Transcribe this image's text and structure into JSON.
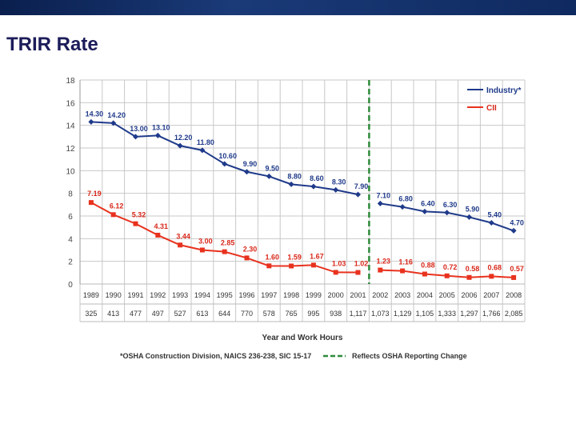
{
  "slide": {
    "title": "TRIR Rate",
    "accent": "#0f2a60"
  },
  "chart_data": {
    "type": "line",
    "xlabel": "Year and Work Hours",
    "ylim": [
      0,
      18
    ],
    "yticks": [
      0,
      2,
      4,
      6,
      8,
      10,
      12,
      14,
      16,
      18
    ],
    "grid": true,
    "legend_position": "top-right",
    "categories": [
      "1989",
      "1990",
      "1991",
      "1992",
      "1993",
      "1994",
      "1995",
      "1996",
      "1997",
      "1998",
      "1999",
      "2000",
      "2001",
      "2002",
      "2003",
      "2004",
      "2005",
      "2006",
      "2007",
      "2008"
    ],
    "work_hours": [
      "325",
      "413",
      "477",
      "497",
      "527",
      "613",
      "644",
      "770",
      "578",
      "765",
      "995",
      "938",
      "1,117",
      "1,073",
      "1,129",
      "1,105",
      "1,333",
      "1,297",
      "1,766",
      "2,085"
    ],
    "series": [
      {
        "name": "Industry*",
        "color": "#1f3a8a",
        "values": [
          14.3,
          14.2,
          13.0,
          13.1,
          12.2,
          11.8,
          10.6,
          9.9,
          9.5,
          8.8,
          8.6,
          8.3,
          7.9,
          7.1,
          6.8,
          6.4,
          6.3,
          5.9,
          5.4,
          4.7
        ],
        "labels": [
          "14.30",
          "14.20",
          "13.00",
          "13.10",
          "12.20",
          "11.80",
          "10.60",
          "9.90",
          "9.50",
          "8.80",
          "8.60",
          "8.30",
          "7.90",
          "7.10",
          "6.80",
          "6.40",
          "6.30",
          "5.90",
          "5.40",
          "4.70"
        ]
      },
      {
        "name": "CII",
        "color": "#e8321e",
        "values": [
          7.19,
          6.12,
          5.32,
          4.31,
          3.44,
          3.0,
          2.85,
          2.3,
          1.6,
          1.59,
          1.67,
          1.03,
          1.02,
          1.23,
          1.16,
          0.88,
          0.72,
          0.58,
          0.68,
          0.57
        ],
        "labels": [
          "7.19",
          "6.12",
          "5.32",
          "4.31",
          "3.44",
          "3.00",
          "2.85",
          "2.30",
          "1.60",
          "1.59",
          "1.67",
          "1.03",
          "1.02",
          "1.23",
          "1.16",
          "0.88",
          "0.72",
          "0.58",
          "0.68",
          "0.57"
        ]
      }
    ],
    "break_after": "2001",
    "footnotes": {
      "source": "*OSHA Construction Division, NAICS 236-238, SIC 15-17",
      "reporting_change": "Reflects OSHA Reporting Change",
      "reporting_change_color": "#2e8b3a"
    }
  }
}
